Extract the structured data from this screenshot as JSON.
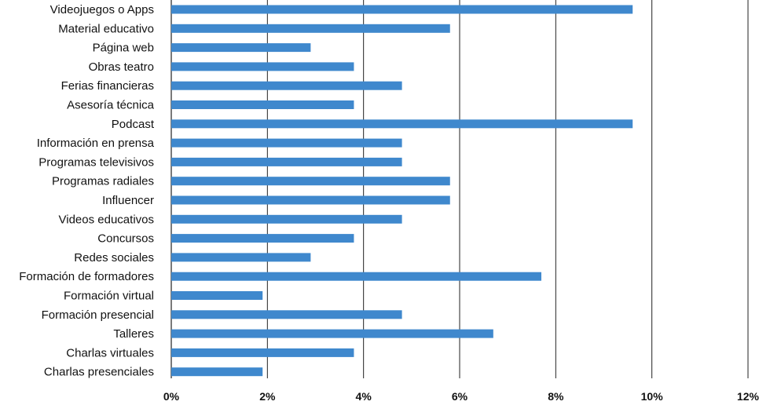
{
  "chart_data": {
    "type": "bar",
    "orientation": "horizontal",
    "categories": [
      "Videojuegos o Apps",
      "Material educativo",
      "Página web",
      "Obras teatro",
      "Ferias financieras",
      "Asesoría técnica",
      "Podcast",
      "Información en prensa",
      "Programas televisivos",
      "Programas radiales",
      "Influencer",
      "Videos educativos",
      "Concursos",
      "Redes sociales",
      "Formación de formadores",
      "Formación virtual",
      "Formación presencial",
      "Talleres",
      "Charlas virtuales",
      "Charlas presenciales"
    ],
    "values": [
      9.6,
      5.8,
      2.9,
      3.8,
      4.8,
      3.8,
      9.6,
      4.8,
      4.8,
      5.8,
      5.8,
      4.8,
      3.8,
      2.9,
      7.7,
      1.9,
      4.8,
      6.7,
      3.8,
      1.9
    ],
    "xlim": [
      0,
      12
    ],
    "x_ticks": [
      "0%",
      "2%",
      "4%",
      "6%",
      "8%",
      "10%",
      "12%"
    ],
    "tick_step": 2,
    "title": "",
    "xlabel": "",
    "ylabel": "",
    "grid": "vertical",
    "legend": "none",
    "bar_color": "#3f88cd"
  }
}
